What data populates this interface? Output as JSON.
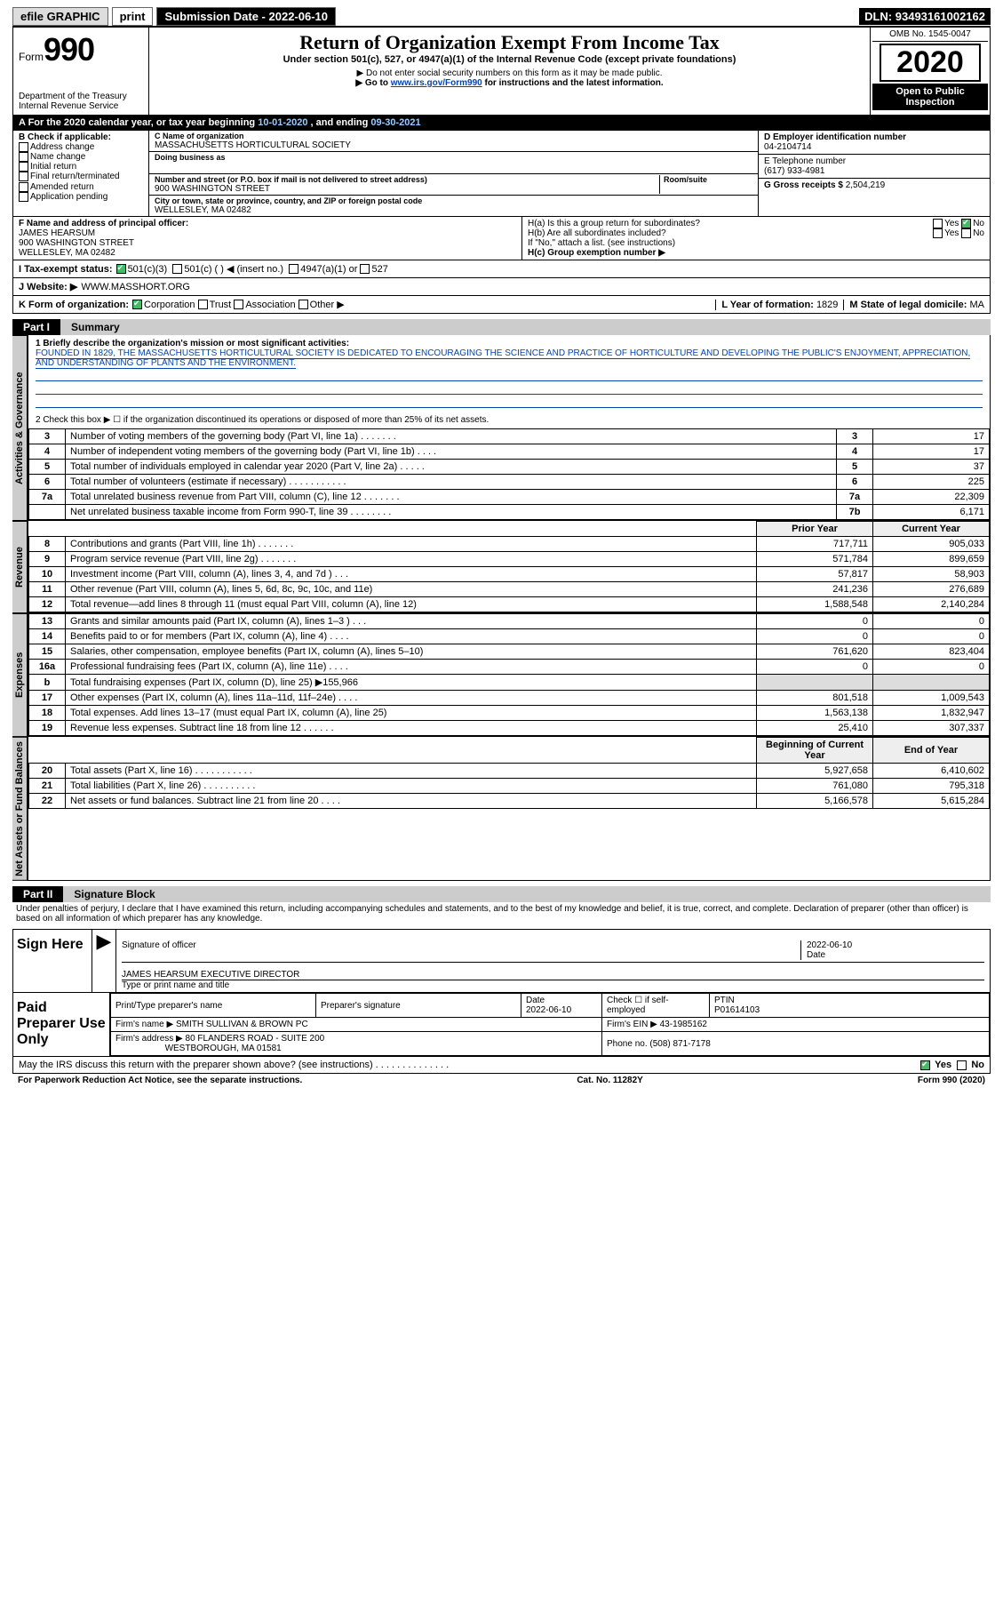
{
  "topbar": {
    "efile": "efile GRAPHIC",
    "print": "print",
    "subdate_label": "Submission Date - ",
    "subdate": "2022-06-10",
    "dln_label": "DLN: ",
    "dln": "93493161002162"
  },
  "header": {
    "form_prefix": "Form",
    "form_number": "990",
    "dept1": "Department of the Treasury",
    "dept2": "Internal Revenue Service",
    "title": "Return of Organization Exempt From Income Tax",
    "subtitle": "Under section 501(c), 527, or 4947(a)(1) of the Internal Revenue Code (except private foundations)",
    "note1": "▶ Do not enter social security numbers on this form as it may be made public.",
    "note2_pre": "▶ Go to ",
    "note2_link": "www.irs.gov/Form990",
    "note2_post": " for instructions and the latest information.",
    "omb": "OMB No. 1545-0047",
    "year": "2020",
    "open": "Open to Public Inspection"
  },
  "period": {
    "text_pre": "A For the 2020 calendar year, or tax year beginning ",
    "begin": "10-01-2020",
    "text_mid": " , and ending ",
    "end": "09-30-2021"
  },
  "boxB": {
    "label": "B Check if applicable:",
    "opts": [
      "Address change",
      "Name change",
      "Initial return",
      "Final return/terminated",
      "Amended return",
      "Application pending"
    ]
  },
  "boxC": {
    "name_label": "C Name of organization",
    "name": "MASSACHUSETTS HORTICULTURAL SOCIETY",
    "dba_label": "Doing business as",
    "addr_label": "Number and street (or P.O. box if mail is not delivered to street address)",
    "room_label": "Room/suite",
    "addr": "900 WASHINGTON STREET",
    "city_label": "City or town, state or province, country, and ZIP or foreign postal code",
    "city": "WELLESLEY, MA  02482"
  },
  "boxDEFG": {
    "d_label": "D Employer identification number",
    "d": "04-2104714",
    "e_label": "E Telephone number",
    "e": "(617) 933-4981",
    "g_label": "G Gross receipts $ ",
    "g": "2,504,219"
  },
  "boxF": {
    "label": "F Name and address of principal officer:",
    "name": "JAMES HEARSUM",
    "addr1": "900 WASHINGTON STREET",
    "addr2": "WELLESLEY, MA  02482"
  },
  "boxH": {
    "a": "H(a) Is this a group return for subordinates?",
    "b": "H(b) Are all subordinates included?",
    "b_note": "If \"No,\" attach a list. (see instructions)",
    "c": "H(c) Group exemption number ▶",
    "yes": "Yes",
    "no": "No"
  },
  "boxI": {
    "label": "I    Tax-exempt status:",
    "opt1": "501(c)(3)",
    "opt2": "501(c) (   ) ◀ (insert no.)",
    "opt3": "4947(a)(1) or",
    "opt4": "527"
  },
  "boxJ": {
    "label": "J    Website: ▶",
    "value": "WWW.MASSHORT.ORG"
  },
  "boxK": {
    "label": "K Form of organization:",
    "opts": [
      "Corporation",
      "Trust",
      "Association",
      "Other ▶"
    ]
  },
  "boxLM": {
    "l_label": "L Year of formation: ",
    "l": "1829",
    "m_label": "M State of legal domicile: ",
    "m": "MA"
  },
  "part1": {
    "tag": "Part I",
    "title": "Summary",
    "line1_label": "1   Briefly describe the organization's mission or most significant activities:",
    "mission": "FOUNDED IN 1829, THE MASSACHUSETTS HORTICULTURAL SOCIETY IS DEDICATED TO ENCOURAGING THE SCIENCE AND PRACTICE OF HORTICULTURE AND DEVELOPING THE PUBLIC'S ENJOYMENT, APPRECIATION, AND UNDERSTANDING OF PLANTS AND THE ENVIRONMENT.",
    "line2": "2   Check this box ▶ ☐ if the organization discontinued its operations or disposed of more than 25% of its net assets."
  },
  "gov_rows": [
    {
      "n": "3",
      "label": "Number of voting members of the governing body (Part VI, line 1a)   .    .    .    .    .    .    .",
      "box": "3",
      "val": "17"
    },
    {
      "n": "4",
      "label": "Number of independent voting members of the governing body (Part VI, line 1b)   .    .    .    .",
      "box": "4",
      "val": "17"
    },
    {
      "n": "5",
      "label": "Total number of individuals employed in calendar year 2020 (Part V, line 2a)   .    .    .    .    .",
      "box": "5",
      "val": "37"
    },
    {
      "n": "6",
      "label": "Total number of volunteers (estimate if necessary)   .    .    .    .    .    .    .    .    .    .    .",
      "box": "6",
      "val": "225"
    },
    {
      "n": "7a",
      "label": "Total unrelated business revenue from Part VIII, column (C), line 12   .    .    .    .    .    .    .",
      "box": "7a",
      "val": "22,309"
    },
    {
      "n": "",
      "label": "Net unrelated business taxable income from Form 990-T, line 39   .    .    .    .    .    .    .    .",
      "box": "7b",
      "val": "6,171"
    }
  ],
  "vtabs": {
    "gov": "Activities & Governance",
    "rev": "Revenue",
    "exp": "Expenses",
    "net": "Net Assets or Fund Balances"
  },
  "cols": {
    "prior": "Prior Year",
    "current": "Current Year",
    "begin": "Beginning of Current Year",
    "end": "End of Year"
  },
  "rev_rows": [
    {
      "n": "8",
      "label": "Contributions and grants (Part VIII, line 1h)   .    .    .    .    .    .    .",
      "py": "717,711",
      "cy": "905,033"
    },
    {
      "n": "9",
      "label": "Program service revenue (Part VIII, line 2g)   .    .    .    .    .    .    .",
      "py": "571,784",
      "cy": "899,659"
    },
    {
      "n": "10",
      "label": "Investment income (Part VIII, column (A), lines 3, 4, and 7d )   .    .    .",
      "py": "57,817",
      "cy": "58,903"
    },
    {
      "n": "11",
      "label": "Other revenue (Part VIII, column (A), lines 5, 6d, 8c, 9c, 10c, and 11e)",
      "py": "241,236",
      "cy": "276,689"
    },
    {
      "n": "12",
      "label": "Total revenue—add lines 8 through 11 (must equal Part VIII, column (A), line 12)",
      "py": "1,588,548",
      "cy": "2,140,284"
    }
  ],
  "exp_rows": [
    {
      "n": "13",
      "label": "Grants and similar amounts paid (Part IX, column (A), lines 1–3 )   .    .    .",
      "py": "0",
      "cy": "0"
    },
    {
      "n": "14",
      "label": "Benefits paid to or for members (Part IX, column (A), line 4)   .    .    .    .",
      "py": "0",
      "cy": "0"
    },
    {
      "n": "15",
      "label": "Salaries, other compensation, employee benefits (Part IX, column (A), lines 5–10)",
      "py": "761,620",
      "cy": "823,404"
    },
    {
      "n": "16a",
      "label": "Professional fundraising fees (Part IX, column (A), line 11e)   .    .    .    .",
      "py": "0",
      "cy": "0"
    }
  ],
  "exp_b": {
    "n": "b",
    "label": "Total fundraising expenses (Part IX, column (D), line 25) ▶",
    "val": "155,966"
  },
  "exp_rows2": [
    {
      "n": "17",
      "label": "Other expenses (Part IX, column (A), lines 11a–11d, 11f–24e)   .    .    .    .",
      "py": "801,518",
      "cy": "1,009,543"
    },
    {
      "n": "18",
      "label": "Total expenses. Add lines 13–17 (must equal Part IX, column (A), line 25)",
      "py": "1,563,138",
      "cy": "1,832,947"
    },
    {
      "n": "19",
      "label": "Revenue less expenses. Subtract line 18 from line 12   .    .    .    .    .    .",
      "py": "25,410",
      "cy": "307,337"
    }
  ],
  "net_rows": [
    {
      "n": "20",
      "label": "Total assets (Part X, line 16)   .    .    .    .    .    .    .    .    .    .    .",
      "py": "5,927,658",
      "cy": "6,410,602"
    },
    {
      "n": "21",
      "label": "Total liabilities (Part X, line 26)   .    .    .    .    .    .    .    .    .    .",
      "py": "761,080",
      "cy": "795,318"
    },
    {
      "n": "22",
      "label": "Net assets or fund balances. Subtract line 21 from line 20   .    .    .    .",
      "py": "5,166,578",
      "cy": "5,615,284"
    }
  ],
  "part2": {
    "tag": "Part II",
    "title": "Signature Block",
    "declaration": "Under penalties of perjury, I declare that I have examined this return, including accompanying schedules and statements, and to the best of my knowledge and belief, it is true, correct, and complete. Declaration of preparer (other than officer) is based on all information of which preparer has any knowledge."
  },
  "sign": {
    "label": "Sign Here",
    "sig_label": "Signature of officer",
    "date_label": "Date",
    "date": "2022-06-10",
    "name": "JAMES HEARSUM  EXECUTIVE DIRECTOR",
    "name_label": "Type or print name and title"
  },
  "preparer": {
    "label": "Paid Preparer Use Only",
    "col1": "Print/Type preparer's name",
    "col2": "Preparer's signature",
    "col3": "Date",
    "date": "2022-06-10",
    "check_label": "Check ☐ if self-employed",
    "ptin_label": "PTIN",
    "ptin": "P01614103",
    "firm_label": "Firm's name    ▶",
    "firm": "SMITH SULLIVAN & BROWN PC",
    "ein_label": "Firm's EIN ▶",
    "ein": "43-1985162",
    "addr_label": "Firm's address ▶",
    "addr1": "80 FLANDERS ROAD - SUITE 200",
    "addr2": "WESTBOROUGH, MA  01581",
    "phone_label": "Phone no. ",
    "phone": "(508) 871-7178"
  },
  "discuss": {
    "q": "May the IRS discuss this return with the preparer shown above? (see instructions)   .    .    .    .    .    .    .    .    .    .    .    .    .    .",
    "yes": "Yes",
    "no": "No"
  },
  "footer": {
    "left": "For Paperwork Reduction Act Notice, see the separate instructions.",
    "mid": "Cat. No. 11282Y",
    "right": "Form 990 (2020)"
  }
}
